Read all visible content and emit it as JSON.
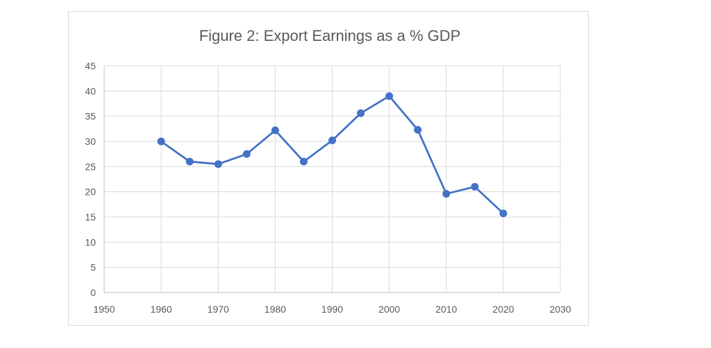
{
  "chart_data": {
    "type": "scatter",
    "title": "Figure 2: Export Earnings as a % GDP",
    "xlabel": "",
    "ylabel": "",
    "xlim": [
      1950,
      2030
    ],
    "ylim": [
      0,
      45
    ],
    "x_ticks": [
      1950,
      1960,
      1970,
      1980,
      1990,
      2000,
      2010,
      2020,
      2030
    ],
    "y_ticks": [
      0,
      5,
      10,
      15,
      20,
      25,
      30,
      35,
      40,
      45
    ],
    "grid": {
      "horizontal": true,
      "vertical": true
    },
    "legend": "none",
    "series": [
      {
        "color": "#4472c4",
        "lines": true,
        "markers": true,
        "x": [
          1960,
          1965,
          1970,
          1975,
          1980,
          1985,
          1990,
          1995,
          2000,
          2005,
          2010,
          2015,
          2020
        ],
        "y": [
          30.0,
          26.0,
          25.5,
          27.5,
          32.2,
          26.0,
          30.2,
          35.6,
          39.0,
          32.3,
          19.6,
          21.0,
          15.7
        ]
      }
    ]
  }
}
